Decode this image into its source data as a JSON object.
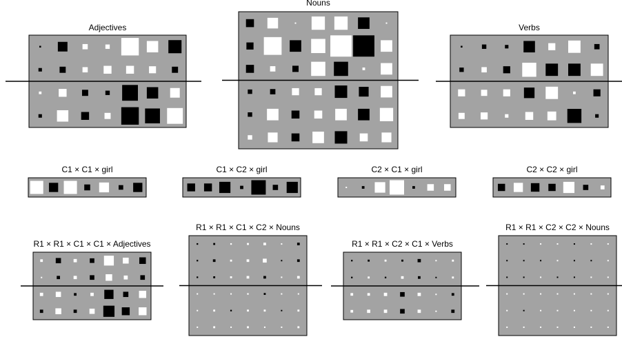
{
  "colors": {
    "background": "#ffffff",
    "panel": "#a3a3a3",
    "positive": "#ffffff",
    "negative": "#000000",
    "line": "#000000"
  },
  "panels": [
    {
      "id": "adjectives",
      "title": "Adjectives",
      "rows": 4,
      "cols": 7,
      "split_line_after_row": 2,
      "values": [
        [
          -0.1,
          -0.55,
          0.3,
          0.25,
          1.0,
          0.65,
          -0.75
        ],
        [
          -0.2,
          -0.35,
          0.3,
          0.45,
          0.45,
          0.4,
          -0.35
        ],
        [
          0.15,
          0.45,
          -0.35,
          -0.25,
          -0.9,
          -0.65,
          0.55
        ],
        [
          -0.2,
          0.65,
          -0.45,
          0.35,
          -1.0,
          -0.85,
          0.9
        ]
      ]
    },
    {
      "id": "nouns",
      "title": "Nouns",
      "rows": 6,
      "cols": 7,
      "split_line_after_row": 3,
      "values": [
        [
          -0.45,
          0.6,
          0.05,
          0.75,
          0.75,
          -0.65,
          0.05
        ],
        [
          -0.4,
          1.0,
          -0.65,
          0.8,
          1.2,
          -1.2,
          0.65
        ],
        [
          -0.45,
          0.3,
          -0.35,
          0.8,
          -0.8,
          0.15,
          0.65
        ],
        [
          -0.25,
          -0.3,
          0.4,
          0.4,
          -0.7,
          -0.55,
          0.65
        ],
        [
          -0.25,
          0.65,
          -0.45,
          0.45,
          0.65,
          -0.65,
          0.75
        ],
        [
          0.25,
          0.55,
          -0.45,
          0.65,
          -0.7,
          0.45,
          0.55
        ]
      ]
    },
    {
      "id": "verbs",
      "title": "Verbs",
      "rows": 4,
      "cols": 7,
      "split_line_after_row": 2,
      "values": [
        [
          -0.1,
          -0.25,
          -0.2,
          -0.65,
          0.4,
          0.7,
          -0.3
        ],
        [
          -0.25,
          0.3,
          -0.4,
          0.8,
          -0.7,
          -0.7,
          0.7
        ],
        [
          0.4,
          0.35,
          0.4,
          -0.6,
          0.7,
          0.15,
          -0.4
        ],
        [
          0.35,
          0.4,
          0.2,
          0.45,
          0.5,
          -0.8,
          -0.2
        ]
      ]
    },
    {
      "id": "c1c1girl",
      "title": "C1 × C1 × girl",
      "rows": 1,
      "cols": 7,
      "values": [
        [
          1.0,
          -0.7,
          1.0,
          -0.45,
          0.75,
          -0.35,
          -0.7
        ]
      ]
    },
    {
      "id": "c1c2girl",
      "title": "C1 × C2 × girl",
      "rows": 1,
      "cols": 7,
      "values": [
        [
          -0.6,
          -0.6,
          -0.85,
          -0.25,
          -1.1,
          -0.4,
          -0.85
        ]
      ]
    },
    {
      "id": "c2c1girl",
      "title": "C2 × C1 × girl",
      "rows": 1,
      "cols": 7,
      "values": [
        [
          0.05,
          -0.2,
          0.8,
          1.1,
          -0.2,
          0.5,
          0.5
        ]
      ]
    },
    {
      "id": "c2c2girl",
      "title": "C2 × C2 × girl",
      "rows": 1,
      "cols": 7,
      "values": [
        [
          -0.55,
          0.7,
          -0.65,
          -0.55,
          0.85,
          -0.4,
          0.3
        ]
      ]
    },
    {
      "id": "r1r1c1c1adj",
      "title": "R1 × R1 × C1 × C1 × Adjectives",
      "rows": 4,
      "cols": 7,
      "split_line_after_row": 2,
      "values": [
        [
          0.2,
          -0.4,
          0.25,
          -0.35,
          0.75,
          0.45,
          -0.5
        ],
        [
          0.1,
          -0.25,
          0.25,
          -0.35,
          0.5,
          0.3,
          -0.35
        ],
        [
          0.25,
          0.4,
          -0.2,
          0.25,
          -0.7,
          -0.4,
          0.55
        ],
        [
          -0.25,
          0.45,
          -0.25,
          0.4,
          -0.85,
          -0.6,
          0.6
        ]
      ]
    },
    {
      "id": "r1r1c1c2nouns",
      "title": "R1 × R1 × C1 × C2 × Nouns",
      "rows": 6,
      "cols": 7,
      "split_line_after_row": 3,
      "values": [
        [
          -0.12,
          -0.15,
          0.12,
          0.15,
          0.2,
          0.1,
          -0.2
        ],
        [
          -0.12,
          -0.2,
          0.15,
          0.2,
          0.3,
          -0.1,
          -0.2
        ],
        [
          -0.12,
          -0.15,
          0.15,
          0.2,
          -0.2,
          0.1,
          0.2
        ],
        [
          0.1,
          0.1,
          0.1,
          0.12,
          -0.15,
          0.1,
          0.1
        ],
        [
          0.1,
          0.15,
          -0.12,
          0.15,
          0.15,
          -0.1,
          0.15
        ],
        [
          0.1,
          0.15,
          0.1,
          0.15,
          0.1,
          0.1,
          0.15
        ]
      ]
    },
    {
      "id": "r1r1c2c1verbs",
      "title": "R1 × R1 × C2 × C1 × Verbs",
      "rows": 4,
      "cols": 7,
      "split_line_after_row": 2,
      "values": [
        [
          -0.12,
          -0.15,
          0.15,
          -0.15,
          -0.25,
          0.1,
          0.15
        ],
        [
          -0.12,
          0.15,
          -0.12,
          0.2,
          -0.2,
          -0.1,
          0.15
        ],
        [
          0.2,
          0.2,
          0.25,
          -0.35,
          0.25,
          0.1,
          -0.2
        ],
        [
          0.2,
          0.25,
          0.25,
          -0.35,
          0.25,
          0.1,
          -0.25
        ]
      ]
    },
    {
      "id": "r1r1c2c2nouns",
      "title": "R1 × R1 × C2 × C2 × Nouns",
      "rows": 6,
      "cols": 7,
      "split_line_after_row": 3,
      "values": [
        [
          -0.08,
          -0.08,
          0.08,
          0.08,
          -0.08,
          0.08,
          0.08
        ],
        [
          -0.08,
          -0.08,
          -0.08,
          0.1,
          -0.08,
          -0.08,
          0.08
        ],
        [
          -0.08,
          -0.08,
          0.08,
          -0.08,
          -0.08,
          0.08,
          0.08
        ],
        [
          0.08,
          0.08,
          0.08,
          0.08,
          0.08,
          0.08,
          0.08
        ],
        [
          0.08,
          -0.08,
          0.08,
          0.08,
          0.08,
          0.08,
          0.08
        ],
        [
          0.08,
          0.08,
          0.08,
          0.08,
          0.08,
          0.08,
          0.08
        ]
      ]
    }
  ]
}
